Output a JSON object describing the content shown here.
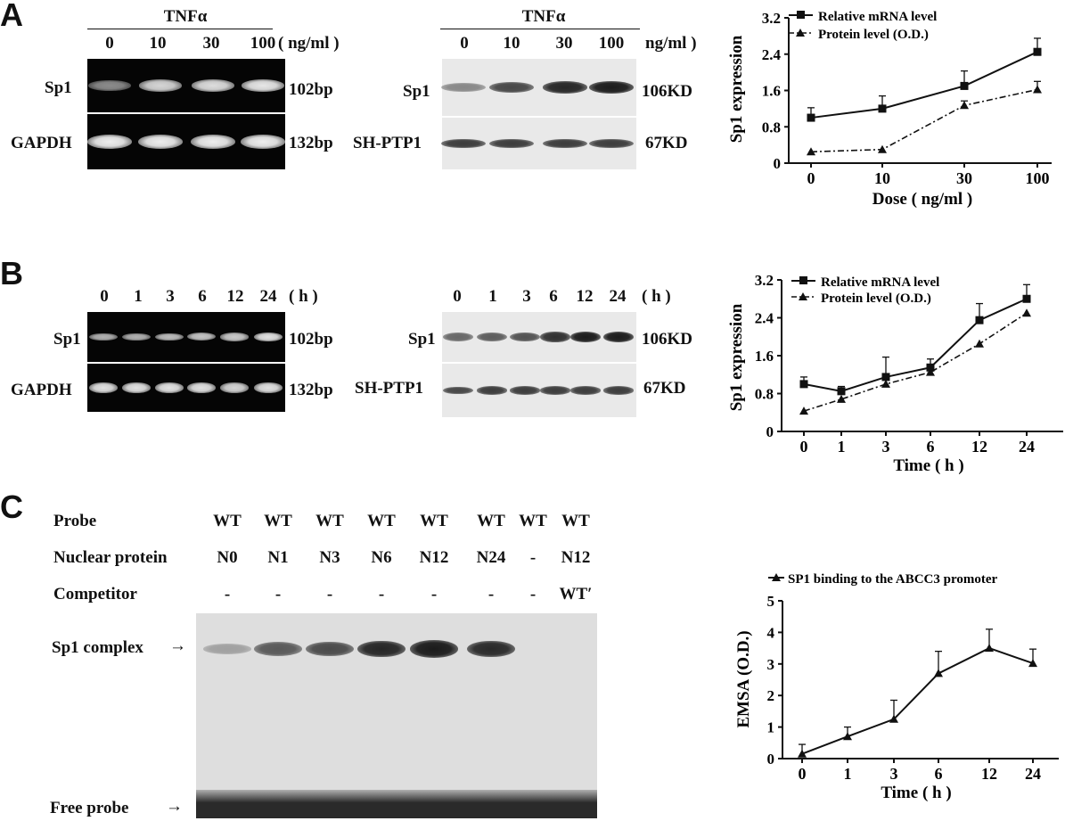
{
  "panelA": {
    "letter": "A",
    "gel": {
      "treatment": "TNFα",
      "lanes": [
        "0",
        "10",
        "30",
        "100"
      ],
      "unit": "( ng/ml )",
      "rows": [
        {
          "name": "Sp1",
          "size": "102bp",
          "intensities": [
            0.55,
            0.85,
            0.88,
            0.92
          ]
        },
        {
          "name": "GAPDH",
          "size": "132bp",
          "intensities": [
            0.95,
            0.95,
            0.95,
            0.95
          ]
        }
      ]
    },
    "blot": {
      "treatment": "TNFα",
      "lanes": [
        "0",
        "10",
        "30",
        "100"
      ],
      "unit": "ng/ml )",
      "rows": [
        {
          "name": "Sp1",
          "size": "106KD",
          "intensities": [
            0.45,
            0.75,
            0.9,
            0.95
          ]
        },
        {
          "name": "SH-PTP1",
          "size": "67KD",
          "intensities": [
            0.8,
            0.8,
            0.8,
            0.8
          ]
        }
      ]
    }
  },
  "panelB": {
    "letter": "B",
    "gel": {
      "lanes": [
        "0",
        "1",
        "3",
        "6",
        "12",
        "24"
      ],
      "unit": "( h )",
      "rows": [
        {
          "name": "Sp1",
          "size": "102bp",
          "intensities": [
            0.7,
            0.7,
            0.75,
            0.78,
            0.8,
            0.9
          ]
        },
        {
          "name": "GAPDH",
          "size": "132bp",
          "intensities": [
            0.9,
            0.9,
            0.9,
            0.9,
            0.85,
            0.9
          ]
        }
      ]
    },
    "blot": {
      "lanes": [
        "0",
        "1",
        "3",
        "6",
        "12",
        "24"
      ],
      "unit": "( h )",
      "rows": [
        {
          "name": "Sp1",
          "size": "106KD",
          "intensities": [
            0.6,
            0.65,
            0.7,
            0.85,
            0.95,
            0.95
          ]
        },
        {
          "name": "SH-PTP1",
          "size": "67KD",
          "intensities": [
            0.75,
            0.8,
            0.8,
            0.8,
            0.8,
            0.8
          ]
        }
      ]
    }
  },
  "panelC": {
    "letter": "C",
    "row_labels": [
      "Probe",
      "Nuclear protein",
      "Competitor"
    ],
    "probe": [
      "WT",
      "WT",
      "WT",
      "WT",
      "WT",
      "WT",
      "WT",
      "WT"
    ],
    "nuclear": [
      "N0",
      "N1",
      "N3",
      "N6",
      "N12",
      "N24",
      "-",
      "N12"
    ],
    "competitor": [
      "-",
      "-",
      "-",
      "-",
      "-",
      "-",
      "-",
      "WT′"
    ],
    "complex_label": "Sp1 complex",
    "free_label": "Free probe",
    "complex_intensities": [
      0.3,
      0.65,
      0.72,
      0.9,
      0.95,
      0.88,
      0,
      0
    ]
  },
  "chart_data": [
    {
      "type": "line",
      "categories": [
        "0",
        "10",
        "30",
        "100"
      ],
      "xlabel": "Dose ( ng/ml )",
      "ylabel": "Sp1 expression",
      "ylim": [
        0,
        3.2
      ],
      "yticks": [
        "0",
        "0.8",
        "1.6",
        "2.4",
        "3.2"
      ],
      "series": [
        {
          "name": "Relative mRNA level",
          "values": [
            1.0,
            1.2,
            1.7,
            2.45
          ],
          "err": [
            0.22,
            0.28,
            0.33,
            0.3
          ],
          "marker": "square",
          "dash": "solid"
        },
        {
          "name": "Protein level (O.D.)",
          "values": [
            0.25,
            0.3,
            1.27,
            1.62
          ],
          "err": [
            0,
            0,
            0.1,
            0.18
          ],
          "marker": "triangle",
          "dash": "dashdot"
        }
      ]
    },
    {
      "type": "line",
      "categories": [
        "0",
        "1",
        "3",
        "6",
        "12",
        "24"
      ],
      "xlabel": "Time ( h )",
      "ylabel": "Sp1 expression",
      "ylim": [
        0,
        3.2
      ],
      "yticks": [
        "0",
        "0.8",
        "1.6",
        "2.4",
        "3.2"
      ],
      "series": [
        {
          "name": "Relative mRNA level",
          "values": [
            1.0,
            0.85,
            1.15,
            1.35,
            2.35,
            2.8
          ],
          "err": [
            0.15,
            0.1,
            0.42,
            0.18,
            0.35,
            0.3
          ],
          "marker": "square",
          "dash": "solid"
        },
        {
          "name": "Protein level (O.D.)",
          "values": [
            0.43,
            0.68,
            1.0,
            1.25,
            1.85,
            2.5
          ],
          "err": [
            0,
            0,
            0,
            0,
            0,
            0
          ],
          "marker": "triangle",
          "dash": "dashdot"
        }
      ]
    },
    {
      "type": "line",
      "categories": [
        "0",
        "1",
        "3",
        "6",
        "12",
        "24"
      ],
      "xlabel": "Time ( h )",
      "ylabel": "EMSA (O.D.)",
      "ylim": [
        0,
        5
      ],
      "yticks": [
        "0",
        "1",
        "2",
        "3",
        "4",
        "5"
      ],
      "series": [
        {
          "name": "SP1 binding to the ABCC3 promoter",
          "values": [
            0.15,
            0.7,
            1.25,
            2.7,
            3.5,
            3.02
          ],
          "err": [
            0.3,
            0.3,
            0.6,
            0.7,
            0.6,
            0.45
          ],
          "marker": "triangle",
          "dash": "solid"
        }
      ]
    }
  ]
}
